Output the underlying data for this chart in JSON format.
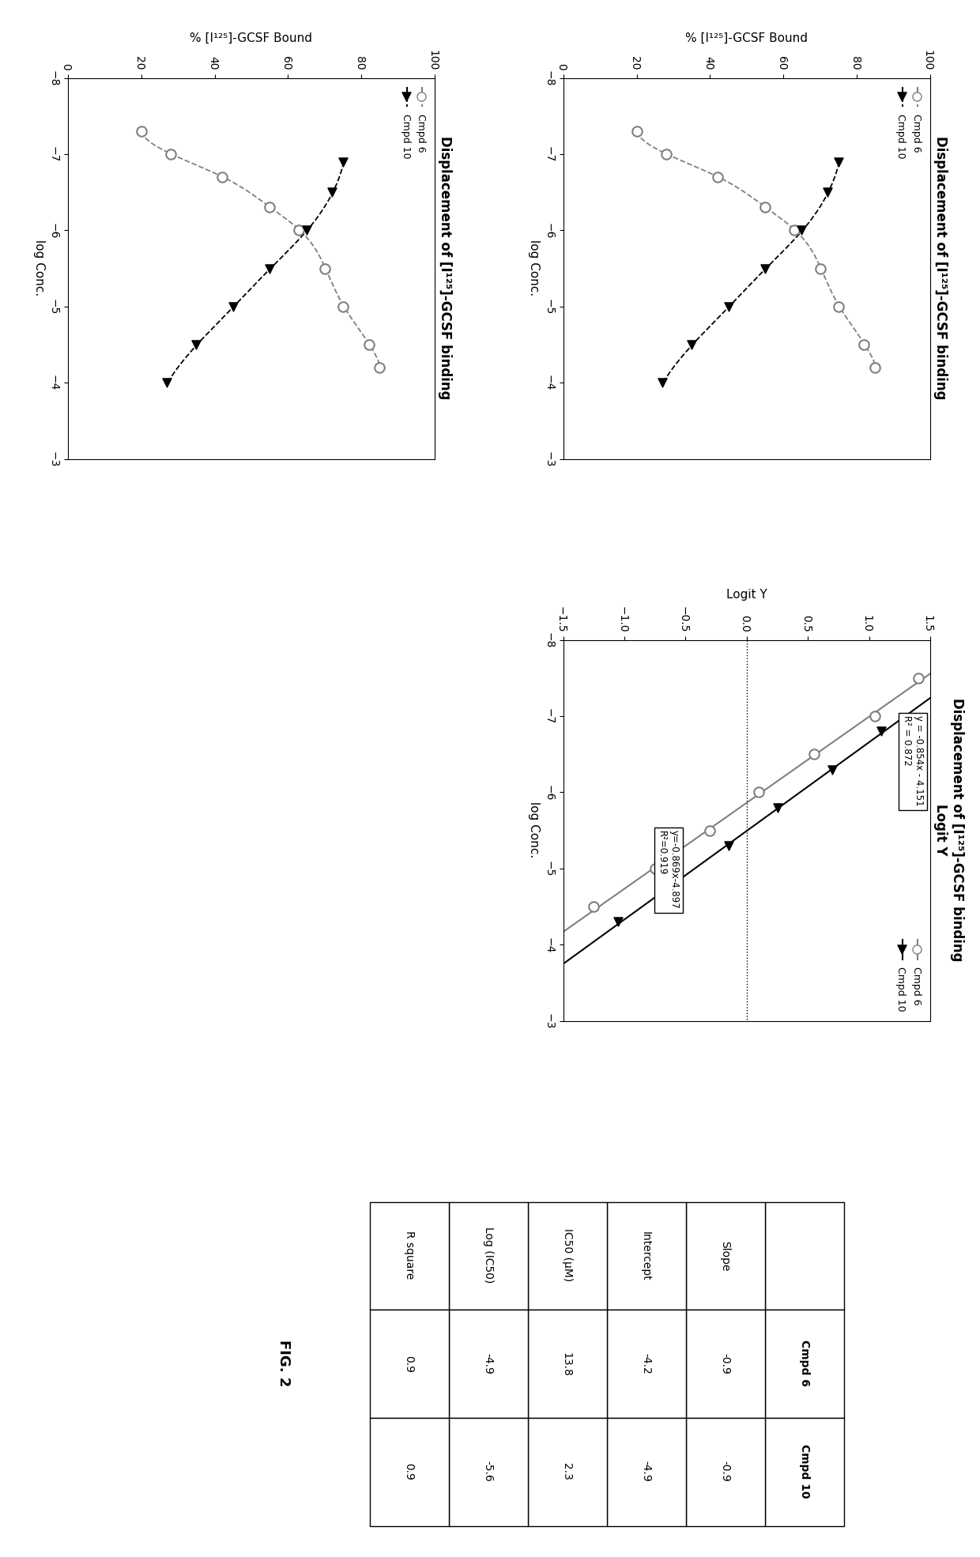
{
  "title_sigmoid": "Displacement of [I¹²⁵]-GCSF binding",
  "title_logit": "Displacement of [I¹²⁵]-GCSF binding\nLogit Y",
  "ylabel_sigmoid": "% [I¹²⁵]-GCSF Bound",
  "ylabel_logit": "Logit Y",
  "xlabel_both": "log Conc.",
  "cmpd6_sig_x": [
    -7.3,
    -7.0,
    -6.7,
    -6.3,
    -6.0,
    -5.5,
    -5.0,
    -4.5,
    -4.2
  ],
  "cmpd6_sig_y": [
    20,
    28,
    42,
    55,
    63,
    70,
    75,
    82,
    85
  ],
  "cmpd10_sig_x": [
    -6.9,
    -6.5,
    -6.0,
    -5.5,
    -5.0,
    -4.5,
    -4.0
  ],
  "cmpd10_sig_y": [
    75,
    72,
    65,
    55,
    45,
    35,
    27
  ],
  "cmpd6_logit_x": [
    -7.5,
    -7.0,
    -6.5,
    -6.0,
    -5.5,
    -5.0,
    -4.5
  ],
  "cmpd6_logit_y": [
    1.4,
    1.05,
    0.55,
    0.1,
    -0.3,
    -0.75,
    -1.25
  ],
  "cmpd10_logit_x": [
    -6.8,
    -6.3,
    -5.8,
    -5.3,
    -4.8,
    -4.3
  ],
  "cmpd10_logit_y": [
    1.1,
    0.7,
    0.25,
    -0.15,
    -0.6,
    -1.05
  ],
  "eq_cmpd6_line1": "y = -0.854x - 4.151",
  "eq_cmpd6_line2": "R² = 0.872",
  "eq_cmpd10_line1": "y=-0.869x-4.897",
  "eq_cmpd10_line2": "R²=0.919",
  "table_rows": [
    "Slope",
    "Intercept",
    "IC50 (μM)",
    "Log (IC50)",
    "R square"
  ],
  "table_cmpd6": [
    "-0.9",
    "-4.2",
    "13.8",
    "-4.9",
    "0.9"
  ],
  "table_cmpd10": [
    "-0.9",
    "-4.9",
    "2.3",
    "-5.6",
    "0.9"
  ],
  "fig_label": "FIG. 2",
  "bg_color": "#ffffff"
}
